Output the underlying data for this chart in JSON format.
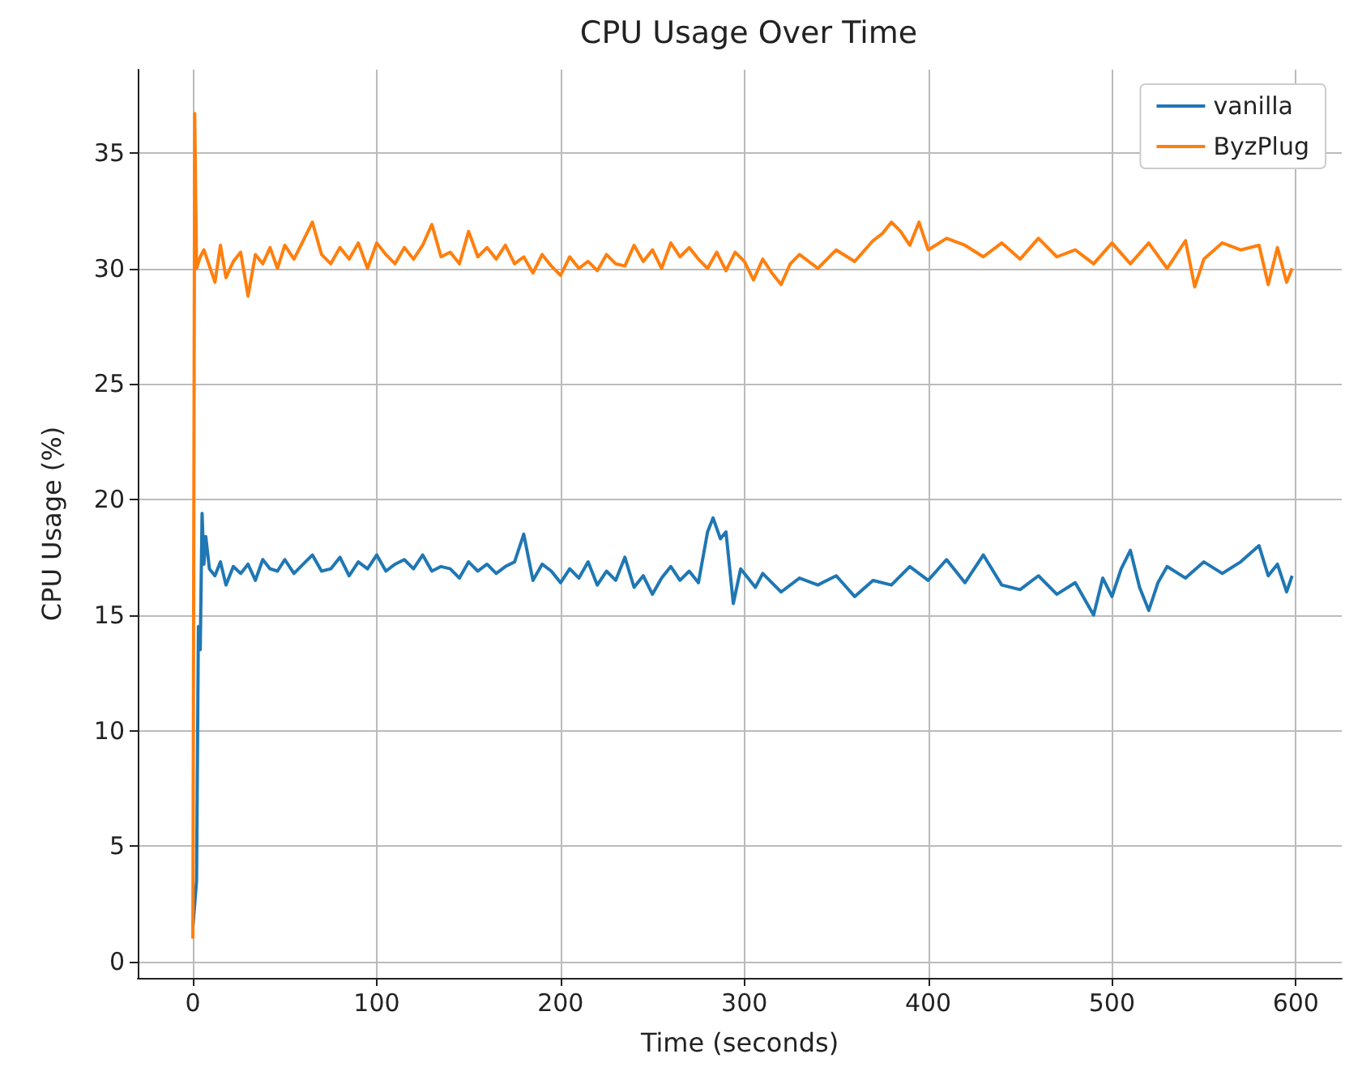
{
  "chart_data": {
    "type": "line",
    "title": "CPU Usage Over Time",
    "xlabel": "Time (seconds)",
    "ylabel": "CPU Usage (%)",
    "xlim": [
      -30,
      625
    ],
    "xticks": [
      0,
      100,
      200,
      300,
      400,
      500,
      600
    ],
    "ylim": [
      -0.7,
      38.6
    ],
    "yticks": [
      0,
      5,
      10,
      15,
      20,
      25,
      30,
      35
    ],
    "grid": true,
    "legend": "top right",
    "marker": "none",
    "line_style": "solid",
    "series": [
      {
        "name": "vanilla",
        "color": "#1f77b4",
        "x": [
          0,
          2,
          3,
          4,
          5,
          6,
          7,
          9,
          12,
          15,
          18,
          22,
          26,
          30,
          34,
          38,
          42,
          46,
          50,
          55,
          60,
          65,
          70,
          75,
          80,
          85,
          90,
          95,
          100,
          105,
          110,
          115,
          120,
          125,
          130,
          135,
          140,
          145,
          150,
          155,
          160,
          165,
          170,
          175,
          180,
          185,
          190,
          195,
          200,
          205,
          210,
          215,
          220,
          225,
          230,
          235,
          240,
          245,
          250,
          255,
          260,
          265,
          270,
          275,
          280,
          283,
          287,
          290,
          294,
          298,
          302,
          306,
          310,
          315,
          320,
          330,
          340,
          350,
          360,
          370,
          380,
          390,
          400,
          410,
          420,
          430,
          440,
          450,
          460,
          470,
          480,
          490,
          495,
          500,
          505,
          510,
          515,
          520,
          525,
          530,
          540,
          550,
          560,
          570,
          580,
          585,
          590,
          595,
          598
        ],
        "values": [
          1.5,
          3.5,
          14.5,
          13.5,
          19.4,
          17.2,
          18.4,
          17,
          16.7,
          17.3,
          16.3,
          17.1,
          16.8,
          17.2,
          16.5,
          17.4,
          17.0,
          16.9,
          17.4,
          16.8,
          17.2,
          17.6,
          16.9,
          17.0,
          17.5,
          16.7,
          17.3,
          17.0,
          17.6,
          16.9,
          17.2,
          17.4,
          17.0,
          17.6,
          16.9,
          17.1,
          17.0,
          16.6,
          17.3,
          16.9,
          17.2,
          16.8,
          17.1,
          17.3,
          18.5,
          16.5,
          17.2,
          16.9,
          16.4,
          17.0,
          16.6,
          17.3,
          16.3,
          16.9,
          16.5,
          17.5,
          16.2,
          16.7,
          15.9,
          16.6,
          17.1,
          16.5,
          16.9,
          16.4,
          18.6,
          19.2,
          18.3,
          18.6,
          15.5,
          17.0,
          16.6,
          16.2,
          16.8,
          16.4,
          16.0,
          16.6,
          16.3,
          16.7,
          15.8,
          16.5,
          16.3,
          17.1,
          16.5,
          17.4,
          16.4,
          17.6,
          16.3,
          16.1,
          16.7,
          15.9,
          16.4,
          15.0,
          16.6,
          15.8,
          17.0,
          17.8,
          16.2,
          15.2,
          16.4,
          17.1,
          16.6,
          17.3,
          16.8,
          17.3,
          18.0,
          16.7,
          17.2,
          16.0,
          16.7
        ]
      },
      {
        "name": "ByzPlug",
        "color": "#ff7f0e",
        "x": [
          0,
          1,
          2,
          4,
          6,
          9,
          12,
          15,
          18,
          22,
          26,
          30,
          34,
          38,
          42,
          46,
          50,
          55,
          60,
          65,
          70,
          75,
          80,
          85,
          90,
          95,
          100,
          105,
          110,
          115,
          120,
          125,
          130,
          135,
          140,
          145,
          150,
          155,
          160,
          165,
          170,
          175,
          180,
          185,
          190,
          195,
          200,
          205,
          210,
          215,
          220,
          225,
          230,
          235,
          240,
          245,
          250,
          255,
          260,
          265,
          270,
          275,
          280,
          285,
          290,
          295,
          300,
          305,
          310,
          315,
          320,
          325,
          330,
          340,
          350,
          360,
          370,
          375,
          380,
          385,
          390,
          395,
          400,
          410,
          420,
          430,
          440,
          450,
          460,
          470,
          480,
          490,
          500,
          510,
          520,
          530,
          540,
          545,
          550,
          560,
          570,
          580,
          585,
          590,
          595,
          598
        ],
        "values": [
          1.0,
          36.7,
          30.0,
          30.5,
          30.8,
          30.1,
          29.4,
          31.0,
          29.6,
          30.3,
          30.7,
          28.8,
          30.6,
          30.2,
          30.9,
          30.0,
          31.0,
          30.4,
          31.2,
          32.0,
          30.6,
          30.2,
          30.9,
          30.4,
          31.1,
          30.0,
          31.1,
          30.6,
          30.2,
          30.9,
          30.4,
          31.0,
          31.9,
          30.5,
          30.7,
          30.2,
          31.6,
          30.5,
          30.9,
          30.4,
          31.0,
          30.2,
          30.5,
          29.8,
          30.6,
          30.1,
          29.7,
          30.5,
          30.0,
          30.3,
          29.9,
          30.6,
          30.2,
          30.1,
          31.0,
          30.3,
          30.8,
          30.0,
          31.1,
          30.5,
          30.9,
          30.4,
          30.0,
          30.7,
          29.9,
          30.7,
          30.3,
          29.5,
          30.4,
          29.8,
          29.3,
          30.2,
          30.6,
          30.0,
          30.8,
          30.3,
          31.2,
          31.5,
          32.0,
          31.6,
          31.0,
          32.0,
          30.8,
          31.3,
          31.0,
          30.5,
          31.1,
          30.4,
          31.3,
          30.5,
          30.8,
          30.2,
          31.1,
          30.2,
          31.1,
          30.0,
          31.2,
          29.2,
          30.4,
          31.1,
          30.8,
          31.0,
          29.3,
          30.9,
          29.4,
          30.0
        ]
      }
    ]
  }
}
